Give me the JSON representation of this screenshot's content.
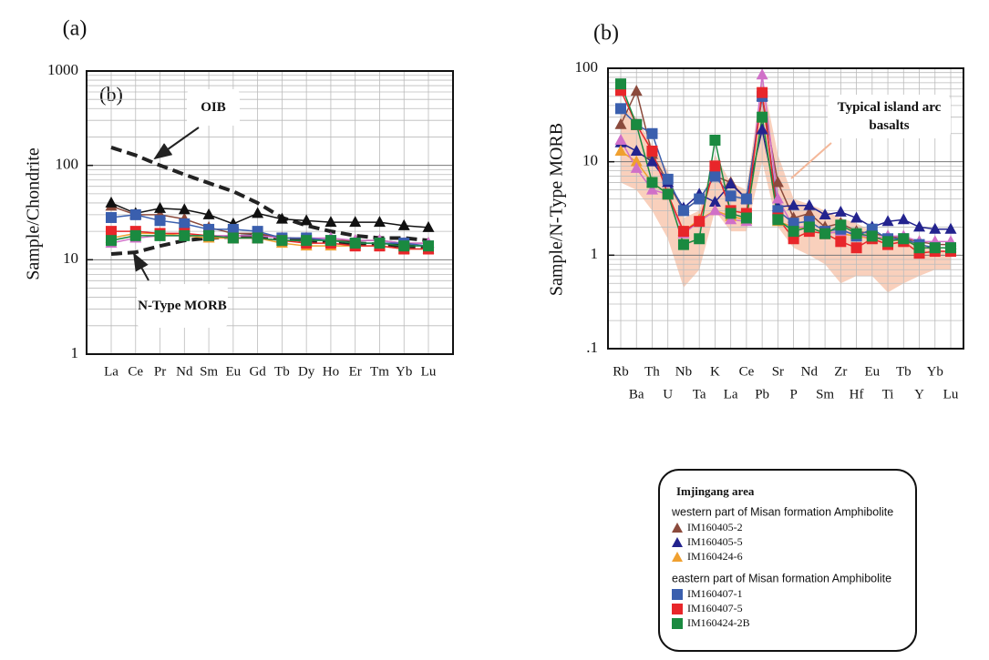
{
  "legend": {
    "title": "Imjingang area",
    "groups": [
      "western part of Misan formation Amphibolite",
      "eastern part of Misan formation Amphibolite"
    ]
  },
  "chart_data": [
    {
      "type": "line",
      "panel_label": "(a)",
      "inset_label": "(b)",
      "y_label": "Sample/Chondrite",
      "log_y": true,
      "grid": true,
      "categories": [
        "La",
        "Ce",
        "Pr",
        "Nd",
        "Sm",
        "Eu",
        "Gd",
        "Tb",
        "Dy",
        "Ho",
        "Er",
        "Tm",
        "Yb",
        "Lu"
      ],
      "ylim": [
        1,
        1000
      ],
      "yticks": [
        1,
        10,
        100,
        1000
      ],
      "references": [
        {
          "name": "OIB",
          "color": "#222222",
          "style": "dashed",
          "values": [
            155,
            128,
            100,
            80,
            65,
            53,
            40,
            28,
            23,
            20,
            18,
            17,
            17,
            16
          ]
        },
        {
          "name": "N-Type MORB",
          "color": "#222222",
          "style": "dashed",
          "values": [
            11.5,
            12,
            14,
            16,
            17,
            17.5,
            18,
            17,
            16,
            15.5,
            15,
            14.5,
            14,
            13.5
          ]
        }
      ],
      "series": [
        {
          "marker": "triangle",
          "color": "#8b4a3c",
          "values": [
            37,
            30,
            30,
            27,
            22,
            19,
            19,
            17,
            17,
            16,
            16,
            16,
            15,
            15
          ]
        },
        {
          "marker": "triangle",
          "color": "#111111",
          "values": [
            40,
            31,
            35,
            34,
            30,
            24,
            31,
            27,
            26,
            25,
            25,
            25,
            23,
            22
          ]
        },
        {
          "marker": "triangle",
          "color": "#f0a030",
          "values": [
            17,
            19,
            19,
            18,
            17,
            17,
            17,
            15,
            14,
            14,
            14,
            14,
            13,
            13
          ]
        },
        {
          "marker": "triangle",
          "color": "#d070c8",
          "values": [
            15,
            17,
            18,
            18,
            18,
            18,
            18,
            17,
            17,
            17,
            16,
            16,
            15,
            15
          ]
        },
        {
          "marker": "square",
          "color": "#3a5fae",
          "values": [
            28,
            30,
            26,
            24,
            21,
            21,
            20,
            17,
            17,
            16,
            15,
            15,
            15,
            14
          ]
        },
        {
          "marker": "square",
          "color": "#e8262a",
          "values": [
            20,
            20,
            19,
            19,
            18,
            17,
            17,
            16,
            15,
            15,
            14,
            14,
            13,
            13
          ]
        },
        {
          "marker": "square",
          "color": "#1a8a40",
          "values": [
            16,
            18,
            18,
            18,
            18,
            17,
            17,
            16,
            16,
            16,
            15,
            15,
            14,
            14
          ]
        }
      ]
    },
    {
      "type": "line",
      "panel_label": "(b)",
      "y_label": "Sample/N-Type MORB",
      "log_y": true,
      "grid": true,
      "categories": [
        "Rb",
        "Ba",
        "Th",
        "U",
        "Nb",
        "Ta",
        "K",
        "La",
        "Ce",
        "Pb",
        "Sr",
        "P",
        "Nd",
        "Sm",
        "Zr",
        "Hf",
        "Eu",
        "Ti",
        "Tb",
        "Y",
        "Yb",
        "Lu"
      ],
      "ylim": [
        0.1,
        100
      ],
      "yticks": [
        {
          "value": 0.1,
          "label": ".1"
        },
        1,
        10,
        100
      ],
      "band": {
        "name": "Typical island arc basalts",
        "color": "#f8c8b0",
        "low": [
          6,
          5,
          3,
          1.5,
          0.45,
          0.7,
          3,
          1.8,
          1.8,
          10,
          2,
          1.2,
          1,
          0.8,
          0.5,
          0.6,
          0.6,
          0.4,
          0.5,
          0.6,
          0.7,
          0.7
        ],
        "high": [
          40,
          30,
          15,
          8,
          2.5,
          3,
          12,
          6,
          5,
          80,
          12,
          4,
          3.5,
          3,
          2.5,
          2.2,
          1.8,
          1.6,
          1.5,
          1.3,
          1.2,
          1.1
        ]
      },
      "series": [
        {
          "name": "IM160405-2",
          "marker": "triangle",
          "color": "#8b4a3c",
          "values": [
            25,
            57,
            12,
            6,
            3,
            4,
            7,
            6,
            4,
            50,
            6,
            2.5,
            2.8,
            2,
            2.2,
            1.8,
            1.7,
            1.6,
            1.5,
            1.4,
            1.3,
            1.3
          ]
        },
        {
          "name": "IM160405-5",
          "marker": "triangle",
          "color": "#23238e",
          "values": [
            16,
            13,
            10,
            6,
            3.2,
            4.5,
            3.7,
            5.8,
            4,
            22,
            3.3,
            3.4,
            3.4,
            2.7,
            2.9,
            2.5,
            2,
            2.3,
            2.4,
            2,
            1.9,
            1.9
          ]
        },
        {
          "name": "IM160424-6",
          "marker": "triangle",
          "color": "#f0a030",
          "values": [
            13,
            10,
            6,
            4.5,
            1.8,
            2.4,
            3,
            2.6,
            2.4,
            30,
            2.3,
            2,
            1.9,
            1.8,
            1.7,
            1.6,
            1.5,
            1.5,
            1.4,
            1.3,
            1.2,
            1.2
          ]
        },
        {
          "marker": "triangle",
          "color": "#d070c8",
          "values": [
            17,
            8.5,
            5,
            4.5,
            1.7,
            2.3,
            3,
            2.4,
            2.3,
            85,
            4,
            2,
            2,
            1.7,
            1.8,
            1.7,
            1.5,
            1.6,
            1.6,
            1.4,
            1.4,
            1.4
          ]
        },
        {
          "name": "IM160407-1",
          "marker": "square",
          "color": "#3a5fae",
          "values": [
            37,
            25,
            20,
            6.5,
            3,
            4,
            7,
            4.3,
            4,
            50,
            3,
            2.2,
            2.3,
            1.8,
            1.9,
            1.6,
            1.9,
            1.5,
            1.5,
            1.3,
            1.2,
            1.2
          ]
        },
        {
          "name": "IM160407-5",
          "marker": "square",
          "color": "#e8262a",
          "values": [
            58,
            25,
            13,
            4.5,
            1.8,
            2.3,
            9,
            3,
            2.8,
            55,
            2.5,
            1.5,
            1.8,
            1.7,
            1.4,
            1.2,
            1.5,
            1.3,
            1.4,
            1.05,
            1.1,
            1.1
          ]
        },
        {
          "name": "IM160424-2B",
          "marker": "square",
          "color": "#1a8a40",
          "values": [
            68,
            25,
            6,
            4.5,
            1.3,
            1.5,
            17,
            2.8,
            2.5,
            30,
            2.4,
            1.8,
            2,
            1.7,
            2.1,
            1.7,
            1.6,
            1.4,
            1.5,
            1.2,
            1.2,
            1.2
          ]
        }
      ]
    }
  ]
}
